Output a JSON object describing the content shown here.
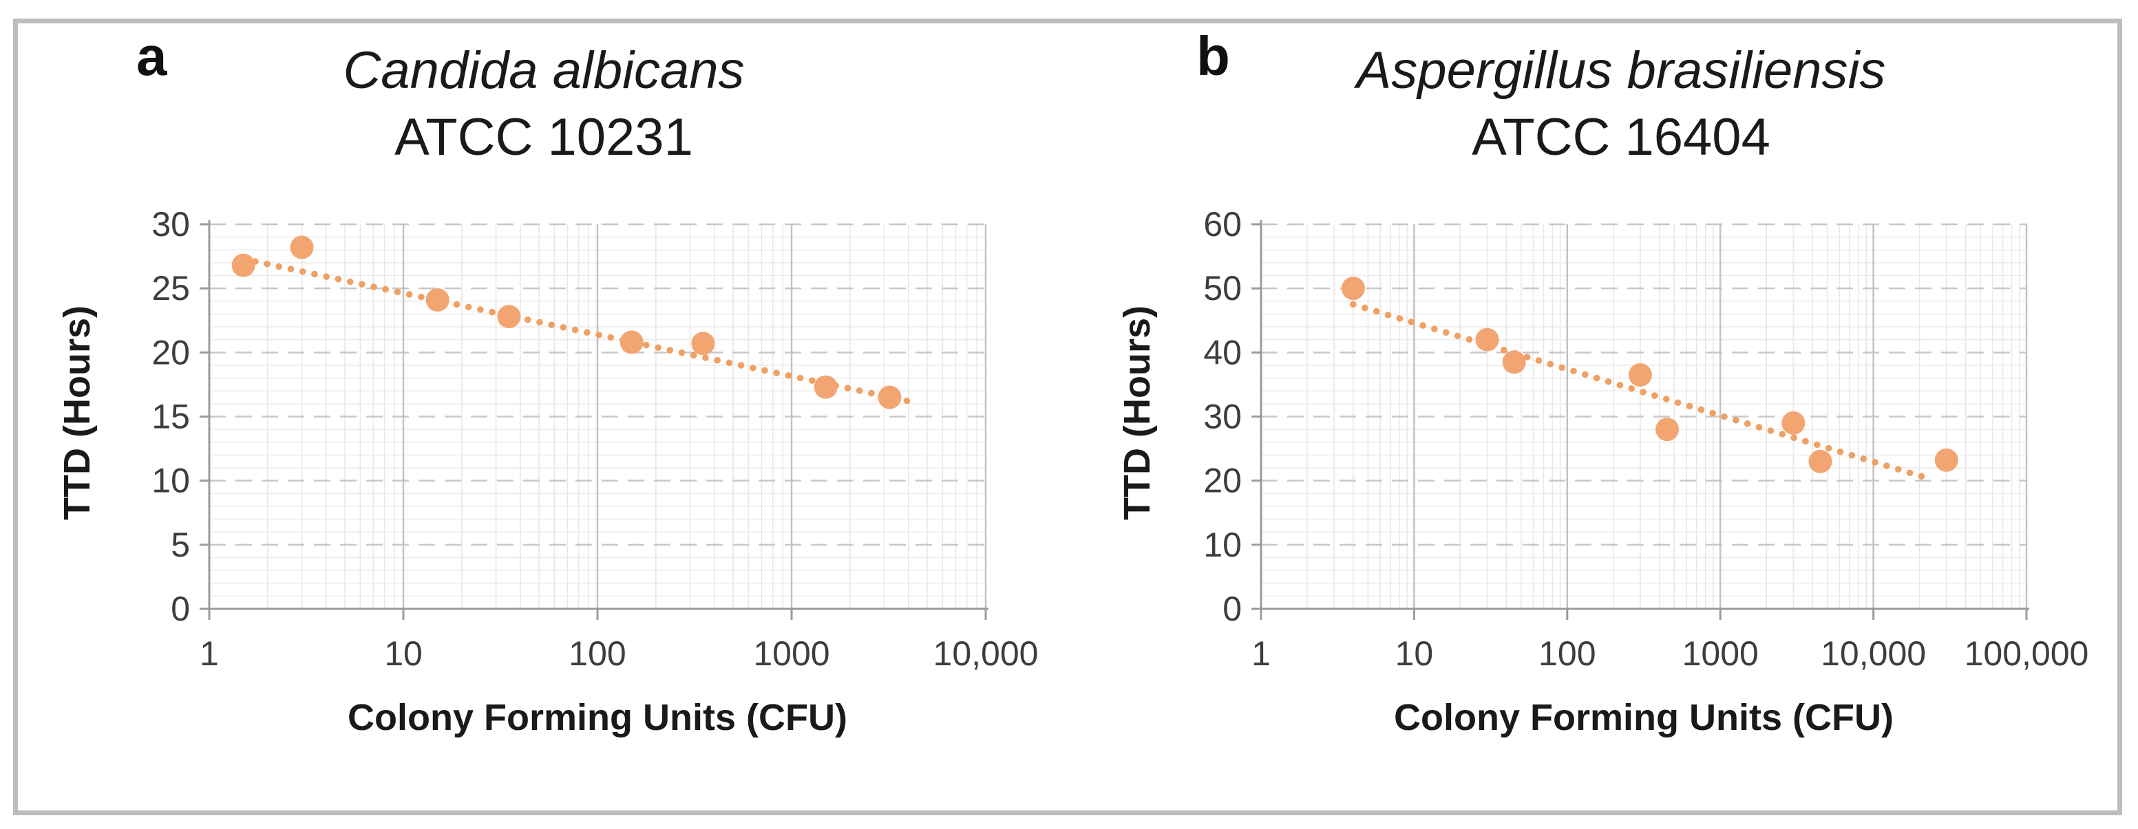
{
  "figure": {
    "panels": [
      {
        "letter": "a",
        "species": "Candida albicans",
        "strain": "ATCC 10231",
        "x_label": "Colony Forming Units (CFU)",
        "y_label": "TTD (Hours)"
      },
      {
        "letter": "b",
        "species": "Aspergillus brasiliensis",
        "strain": "ATCC 16404",
        "x_label": "Colony Forming Units (CFU)",
        "y_label": "TTD (Hours)"
      }
    ],
    "colors": {
      "marker": "#F2A571",
      "trendline": "#EFA063",
      "axis": "#9B9B9B",
      "grid_major": "#C7C7C7",
      "grid_major_vert": "#C2C2C2",
      "grid_minor": "#ECECEC",
      "tick_text": "#3D3D3D",
      "frame_border": "#BDBDBD"
    }
  },
  "chart_data": [
    {
      "type": "scatter",
      "title": "Candida albicans ATCC 10231",
      "xlabel": "Colony Forming Units (CFU)",
      "ylabel": "TTD (Hours)",
      "x_scale": "log",
      "xlim": [
        1,
        10000
      ],
      "ylim": [
        0,
        30
      ],
      "y_tick_step": 5,
      "y_minor_step": 1,
      "x_tick_labels": [
        "1",
        "10",
        "100",
        "1000",
        "10,000"
      ],
      "y_tick_labels": [
        "0",
        "5",
        "10",
        "15",
        "20",
        "25",
        "30"
      ],
      "grid": true,
      "legend": "none",
      "points": [
        {
          "x": 1.5,
          "y": 26.8
        },
        {
          "x": 3,
          "y": 28.2
        },
        {
          "x": 15,
          "y": 24.1
        },
        {
          "x": 35,
          "y": 22.8
        },
        {
          "x": 150,
          "y": 20.8
        },
        {
          "x": 350,
          "y": 20.7
        },
        {
          "x": 1500,
          "y": 17.3
        },
        {
          "x": 3200,
          "y": 16.5
        }
      ],
      "trendline": {
        "style": "dotted",
        "x1": 1.5,
        "y1": 27.3,
        "x2": 4300,
        "y2": 16.1
      }
    },
    {
      "type": "scatter",
      "title": "Aspergillus brasiliensis ATCC 16404",
      "xlabel": "Colony Forming Units (CFU)",
      "ylabel": "TTD (Hours)",
      "x_scale": "log",
      "xlim": [
        1,
        100000
      ],
      "ylim": [
        0,
        60
      ],
      "y_tick_step": 10,
      "y_minor_step": 2,
      "x_tick_labels": [
        "1",
        "10",
        "100",
        "1000",
        "10,000",
        "100,000"
      ],
      "y_tick_labels": [
        "0",
        "10",
        "20",
        "30",
        "40",
        "50",
        "60"
      ],
      "grid": true,
      "legend": "none",
      "points": [
        {
          "x": 4,
          "y": 50
        },
        {
          "x": 30,
          "y": 42
        },
        {
          "x": 45,
          "y": 38.5
        },
        {
          "x": 300,
          "y": 36.5
        },
        {
          "x": 450,
          "y": 28
        },
        {
          "x": 3000,
          "y": 29
        },
        {
          "x": 4500,
          "y": 23
        },
        {
          "x": 30000,
          "y": 23.2
        }
      ],
      "trendline": {
        "style": "dotted",
        "x1": 4,
        "y1": 47.5,
        "x2": 24000,
        "y2": 20.2
      }
    }
  ]
}
